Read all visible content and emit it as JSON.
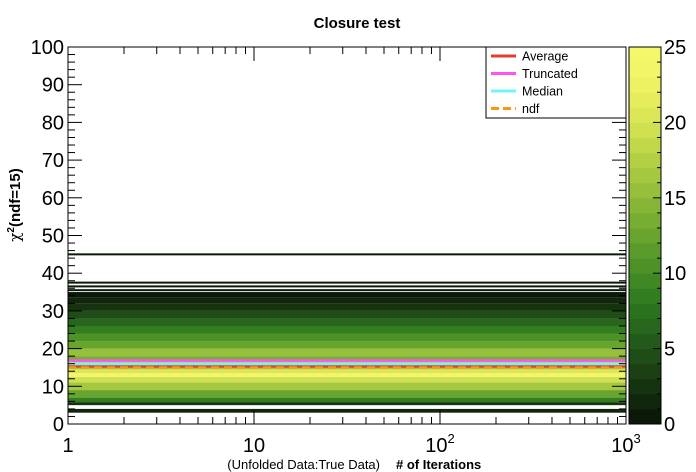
{
  "chart_data": {
    "type": "heatmap",
    "title": "Closure test",
    "xlabel_prefix": "(Unfolded Data:True Data)",
    "xlabel": "# of Iterations",
    "ylabel_main": "χ",
    "ylabel_sup": "2",
    "ylabel_rest": "(ndf=15)",
    "x_scale": "log",
    "xlim": [
      1,
      1000
    ],
    "ylim": [
      0,
      100
    ],
    "x_ticks": [
      {
        "value": 1,
        "base": "1",
        "exp": ""
      },
      {
        "value": 10,
        "base": "10",
        "exp": ""
      },
      {
        "value": 100,
        "base": "10",
        "exp": "2"
      },
      {
        "value": 1000,
        "base": "10",
        "exp": "3"
      }
    ],
    "y_ticks": [
      "0",
      "10",
      "20",
      "30",
      "40",
      "50",
      "60",
      "70",
      "80",
      "90",
      "100"
    ],
    "z_range": [
      0,
      25
    ],
    "z_ticks": [
      "0",
      "5",
      "10",
      "15",
      "20",
      "25"
    ],
    "palette": [
      "#0b1a08",
      "#11260c",
      "#163310",
      "#1b4014",
      "#1f4d17",
      "#23591a",
      "#27661c",
      "#2b721e",
      "#337d21",
      "#3f8824",
      "#4c9227",
      "#5a9b2b",
      "#69a42f",
      "#78ad33",
      "#87b637",
      "#96bf3b",
      "#a5c840",
      "#b3d045",
      "#c1d84b",
      "#cfe051",
      "#dbe757",
      "#e5ed5d",
      "#edf263",
      "#f2f567",
      "#f5f76a"
    ],
    "density_bands": [
      {
        "y0": 3.0,
        "y1": 4.0,
        "z": 1
      },
      {
        "y0": 5.0,
        "y1": 5.8,
        "z": 2
      },
      {
        "y0": 5.8,
        "y1": 7.0,
        "z": 8
      },
      {
        "y0": 7.0,
        "y1": 9.0,
        "z": 12
      },
      {
        "y0": 9.0,
        "y1": 11.0,
        "z": 16
      },
      {
        "y0": 11.0,
        "y1": 12.5,
        "z": 19
      },
      {
        "y0": 12.5,
        "y1": 13.5,
        "z": 23
      },
      {
        "y0": 13.5,
        "y1": 14.5,
        "z": 20
      },
      {
        "y0": 14.5,
        "y1": 15.5,
        "z": 16
      },
      {
        "y0": 15.5,
        "y1": 16.5,
        "z": 18
      },
      {
        "y0": 16.5,
        "y1": 18.0,
        "z": 13
      },
      {
        "y0": 18.0,
        "y1": 20.0,
        "z": 15
      },
      {
        "y0": 20.0,
        "y1": 22.0,
        "z": 12
      },
      {
        "y0": 22.0,
        "y1": 24.0,
        "z": 10
      },
      {
        "y0": 24.0,
        "y1": 26.0,
        "z": 8
      },
      {
        "y0": 26.0,
        "y1": 28.0,
        "z": 6
      },
      {
        "y0": 28.0,
        "y1": 30.0,
        "z": 4
      },
      {
        "y0": 30.0,
        "y1": 32.0,
        "z": 2
      },
      {
        "y0": 32.0,
        "y1": 33.5,
        "z": 1
      },
      {
        "y0": 33.5,
        "y1": 35.0,
        "z": 0.5
      }
    ],
    "sparse_lines": [
      35.5,
      36.5,
      37.5,
      45.0
    ],
    "legend_position": "top-right",
    "series": [
      {
        "name": "Average",
        "color": "#e8392f",
        "y": 15.3,
        "dashed": false
      },
      {
        "name": "Truncated",
        "color": "#ff55f0",
        "y": 16.8,
        "dashed": false
      },
      {
        "name": "Median",
        "color": "#6ff5ff",
        "y": 15.9,
        "dashed": false
      },
      {
        "name": "ndf",
        "color": "#f59a12",
        "y": 15.0,
        "dashed": true
      }
    ]
  }
}
